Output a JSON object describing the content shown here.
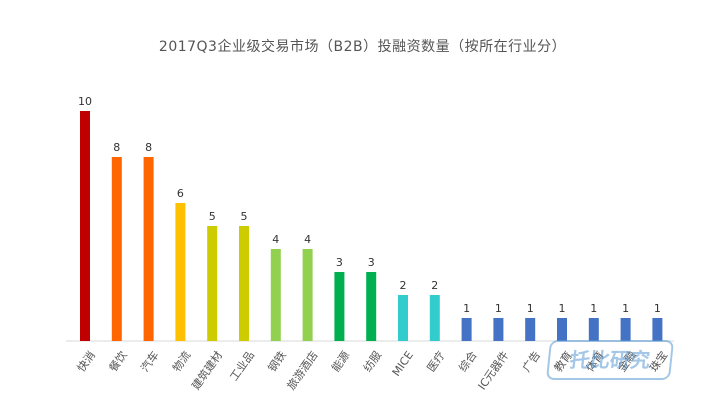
{
  "chart_data": {
    "type": "bar",
    "title": "2017Q3企业级交易市场（B2B）投融资数量（按所在行业分）",
    "categories": [
      "快消",
      "餐饮",
      "汽车",
      "物流",
      "建筑建材",
      "工业品",
      "钢铁",
      "旅游酒店",
      "能源",
      "纺服",
      "MICE",
      "医疗",
      "综合",
      "IC元器件",
      "广告",
      "教育",
      "体育",
      "金融",
      "珠宝"
    ],
    "values": [
      10,
      8,
      8,
      6,
      5,
      5,
      4,
      4,
      3,
      3,
      2,
      2,
      1,
      1,
      1,
      1,
      1,
      1,
      1
    ],
    "colors": [
      "#c00000",
      "#ff6600",
      "#ff6600",
      "#ffc000",
      "#cccc00",
      "#cccc00",
      "#92d050",
      "#92d050",
      "#00b050",
      "#00b050",
      "#33cccc",
      "#33cccc",
      "#4472c4",
      "#4472c4",
      "#4472c4",
      "#4472c4",
      "#4472c4",
      "#4472c4",
      "#4472c4"
    ],
    "xlabel": "",
    "ylabel": "",
    "ylim": [
      0,
      10
    ],
    "grid": false,
    "legend": "none"
  },
  "watermark": {
    "text": "托比研究"
  }
}
